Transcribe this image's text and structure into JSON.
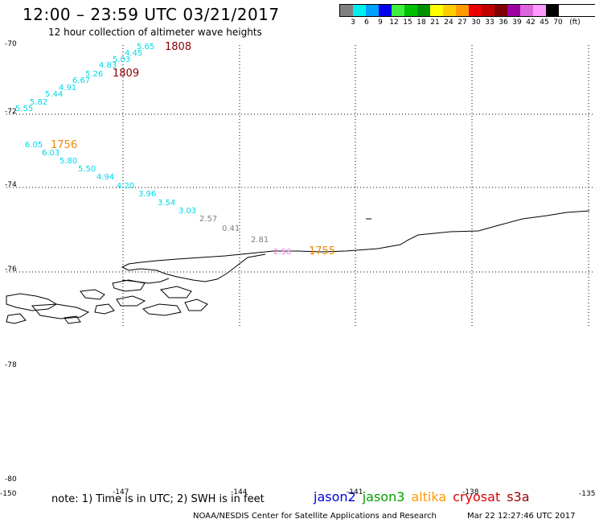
{
  "title": "12:00 – 23:59 UTC 03/21/2017",
  "subtitle": "12 hour collection of altimeter wave heights",
  "legend": {
    "colors": [
      "#808080",
      "#00eeee",
      "#00a0ff",
      "#0000ee",
      "#40ee40",
      "#00c000",
      "#009000",
      "#ffff00",
      "#ffcc00",
      "#ff9900",
      "#ee0000",
      "#c00000",
      "#800000",
      "#a000a0",
      "#dd66dd",
      "#ff99ff",
      "#000000"
    ],
    "labels": [
      "3",
      "6",
      "9",
      "12",
      "15",
      "18",
      "21",
      "24",
      "27",
      "30",
      "33",
      "36",
      "39",
      "42",
      "45",
      "70",
      "(ft)"
    ]
  },
  "map": {
    "lat_labels": [
      "-70",
      "-72",
      "-74",
      "-76",
      "-78",
      "-80"
    ],
    "lon_labels": [
      "-150",
      "-147",
      "-144",
      "-141",
      "-138",
      "-135"
    ],
    "wave_colors": {
      "cyan": "#00d8e8",
      "gray": "#808080",
      "pink": "#e080e8",
      "time_red": "#880000",
      "time_orange": "#ee8800"
    },
    "wave_values": [
      {
        "text": "5.65",
        "c": "cyan"
      },
      {
        "text": "4.45",
        "c": "cyan"
      },
      {
        "text": "5.03",
        "c": "cyan"
      },
      {
        "text": "4.83",
        "c": "cyan"
      },
      {
        "text": "5.26",
        "c": "cyan"
      },
      {
        "text": "6.67",
        "c": "cyan"
      },
      {
        "text": "4.91",
        "c": "cyan"
      },
      {
        "text": "5.44",
        "c": "cyan"
      },
      {
        "text": "5.82",
        "c": "cyan"
      },
      {
        "text": "5.55",
        "c": "cyan"
      },
      {
        "text": "6.05",
        "c": "cyan"
      },
      {
        "text": "6.03",
        "c": "cyan"
      },
      {
        "text": "5.80",
        "c": "cyan"
      },
      {
        "text": "5.50",
        "c": "cyan"
      },
      {
        "text": "4.94",
        "c": "cyan"
      },
      {
        "text": "4.20",
        "c": "cyan"
      },
      {
        "text": "3.96",
        "c": "cyan"
      },
      {
        "text": "3.54",
        "c": "cyan"
      },
      {
        "text": "3.03",
        "c": "cyan"
      },
      {
        "text": "2.57",
        "c": "gray"
      },
      {
        "text": "0.41",
        "c": "gray"
      },
      {
        "text": "2.81",
        "c": "gray"
      },
      {
        "text": "2.56",
        "c": "pink"
      }
    ],
    "time_labels": [
      {
        "text": "1808",
        "c": "time_red"
      },
      {
        "text": "1809",
        "c": "time_red"
      },
      {
        "text": "1756",
        "c": "time_orange"
      },
      {
        "text": "1755",
        "c": "time_orange"
      }
    ]
  },
  "note": "note: 1) Time is in UTC; 2) SWH is in feet",
  "satellites": [
    {
      "name": "jason2",
      "color": "#0000dd"
    },
    {
      "name": "jason3",
      "color": "#00a000"
    },
    {
      "name": "altika",
      "color": "#ff9900"
    },
    {
      "name": "cryosat",
      "color": "#dd0000"
    },
    {
      "name": "s3a",
      "color": "#a00000"
    }
  ],
  "credit": "NOAA/NESDIS Center for Satellite Applications and Research",
  "timestamp": "Mar 22 12:27:46 UTC 2017"
}
